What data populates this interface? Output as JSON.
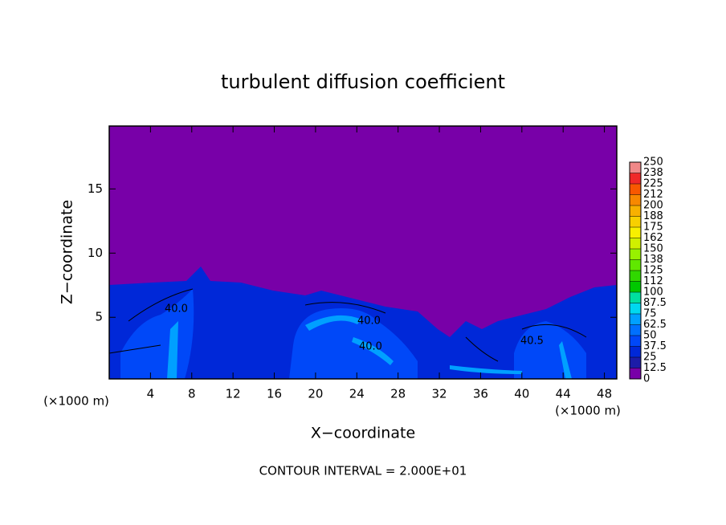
{
  "chart_data": {
    "type": "contour",
    "title": "turbulent diffusion coefficient",
    "x_label": "X−coordinate",
    "y_label": "Z−coordinate",
    "x_unit_left": "(×1000 m)",
    "x_unit_right": "(×1000 m)",
    "footer": "CONTOUR INTERVAL = 2.000E+01",
    "xlim": [
      0,
      49.2
    ],
    "xticks": [
      4,
      8,
      12,
      16,
      20,
      24,
      28,
      32,
      36,
      40,
      44,
      48
    ],
    "ylim": [
      0.2,
      19.9
    ],
    "yticks": [
      5,
      10,
      15
    ],
    "contour_labels": [
      "40.0",
      "40.0",
      "40.0",
      "40.5"
    ],
    "colorbar": {
      "levels": [
        0,
        12.5,
        25,
        37.5,
        50,
        62.5,
        75,
        87.5,
        100,
        112,
        125,
        138,
        150,
        162,
        175,
        188,
        200,
        212,
        225,
        238,
        250
      ],
      "colors": [
        "#7800a8",
        "#1c1ca8",
        "#0028d8",
        "#0048f8",
        "#0070ff",
        "#00a0ff",
        "#00d8f0",
        "#00e0a0",
        "#00c800",
        "#30d800",
        "#60e800",
        "#98f000",
        "#d0f000",
        "#f8f000",
        "#f8d000",
        "#f8b000",
        "#f88800",
        "#f85800",
        "#f02828",
        "#f08888"
      ]
    }
  }
}
